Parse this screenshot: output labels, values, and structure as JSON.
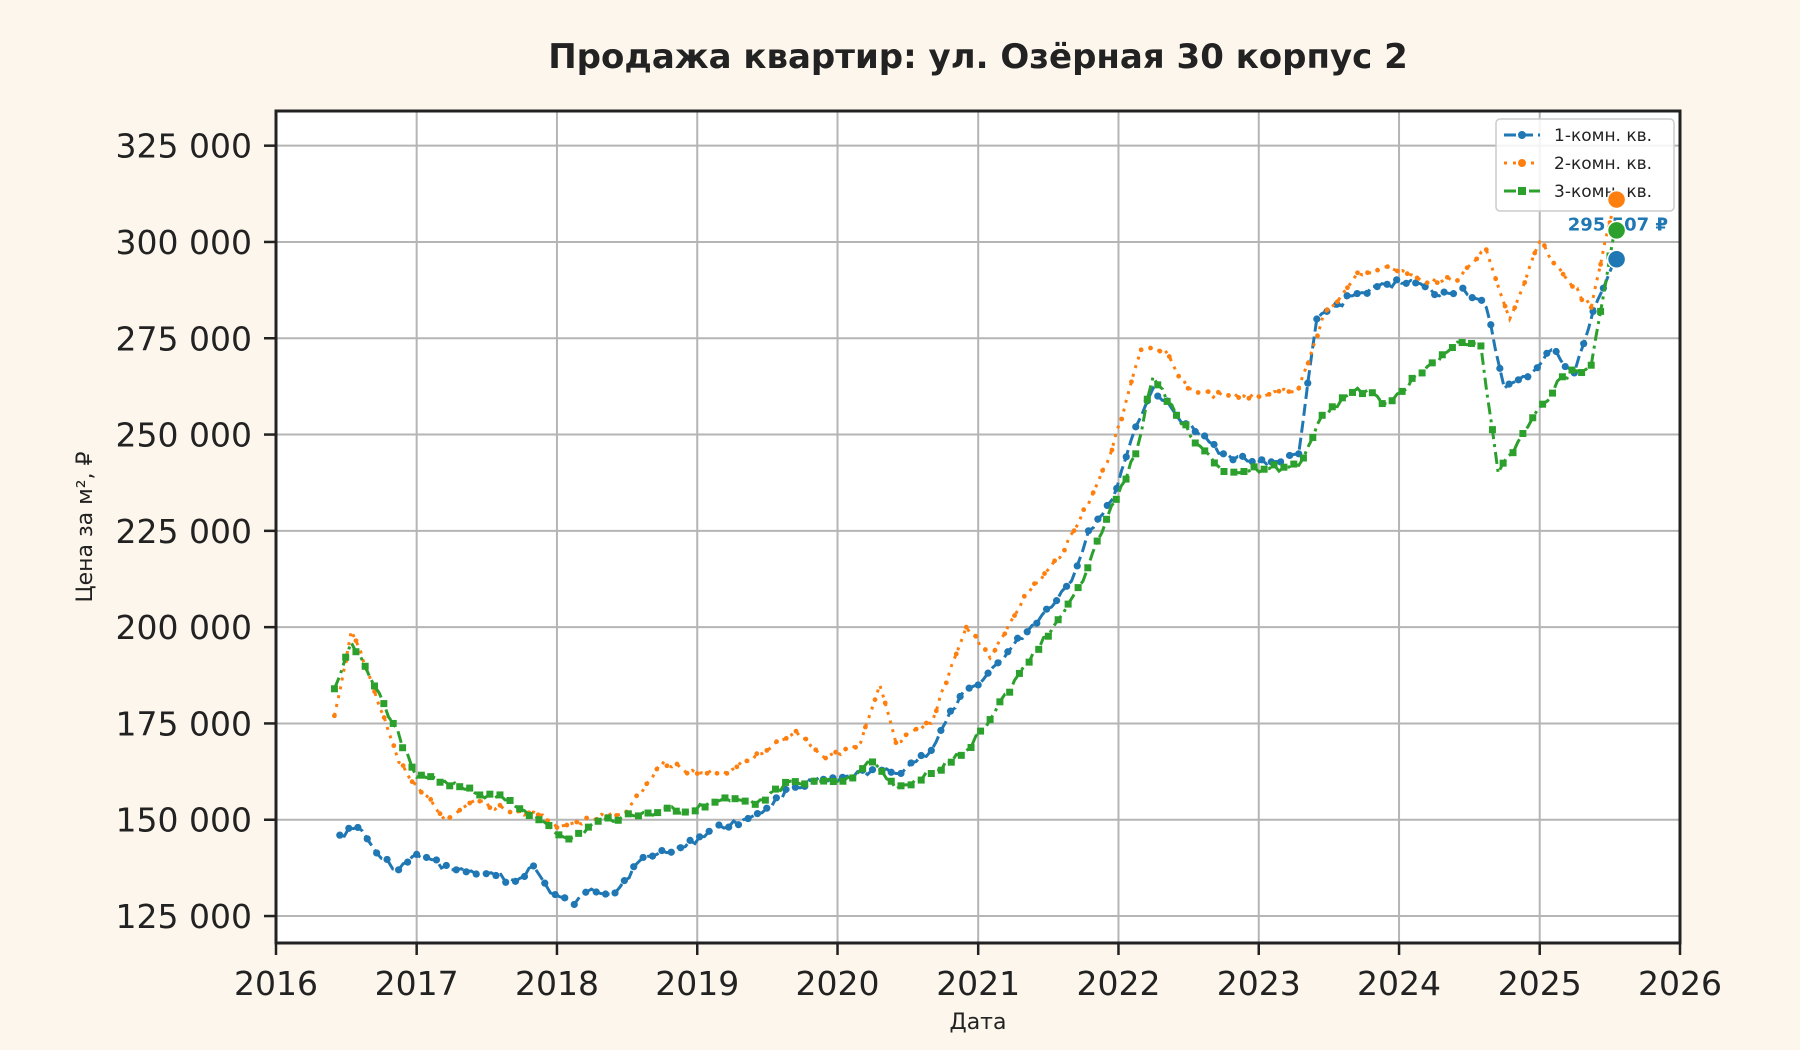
{
  "chart_data": {
    "type": "line",
    "title": "Продажа квартир: ул. Озёрная 30 корпус 2",
    "xlabel": "Дата",
    "ylabel": "Цена за м², ₽",
    "xlim": [
      "2016-01-01",
      "2026-01-01"
    ],
    "ylim": [
      118000,
      334000
    ],
    "x_ticks": [
      "2016",
      "2017",
      "2018",
      "2019",
      "2020",
      "2021",
      "2022",
      "2023",
      "2024",
      "2025",
      "2026"
    ],
    "y_ticks": [
      125000,
      150000,
      175000,
      200000,
      225000,
      250000,
      275000,
      300000,
      325000
    ],
    "y_tick_labels": [
      "125 000",
      "150 000",
      "175 000",
      "200 000",
      "225 000",
      "250 000",
      "275 000",
      "300 000",
      "325 000"
    ],
    "grid": true,
    "legend_position": "top-right",
    "series": [
      {
        "name": "1-комн. кв.",
        "color": "#1f77b4",
        "line_style": "dashed",
        "marker": "circle",
        "last_value": 295507,
        "last_label": "295 507 ₽",
        "points": [
          [
            "2016-06-15",
            146000
          ],
          [
            "2016-08-01",
            148000
          ],
          [
            "2016-10-01",
            140000
          ],
          [
            "2016-11-15",
            137000
          ],
          [
            "2017-01-01",
            141000
          ],
          [
            "2017-04-01",
            137000
          ],
          [
            "2017-07-01",
            136000
          ],
          [
            "2017-09-15",
            134000
          ],
          [
            "2017-11-01",
            138000
          ],
          [
            "2017-12-15",
            131000
          ],
          [
            "2018-02-15",
            128000
          ],
          [
            "2018-04-01",
            132000
          ],
          [
            "2018-06-01",
            131000
          ],
          [
            "2018-08-01",
            139000
          ],
          [
            "2018-10-01",
            142000
          ],
          [
            "2018-12-01",
            143000
          ],
          [
            "2019-02-01",
            147000
          ],
          [
            "2019-05-01",
            150000
          ],
          [
            "2019-07-01",
            153000
          ],
          [
            "2019-09-01",
            158000
          ],
          [
            "2019-11-01",
            160000
          ],
          [
            "2020-01-01",
            160000
          ],
          [
            "2020-04-01",
            163000
          ],
          [
            "2020-06-01",
            162000
          ],
          [
            "2020-09-01",
            168000
          ],
          [
            "2020-11-15",
            182000
          ],
          [
            "2021-01-01",
            185000
          ],
          [
            "2021-04-01",
            195000
          ],
          [
            "2021-06-15",
            203000
          ],
          [
            "2021-09-01",
            212000
          ],
          [
            "2021-10-15",
            225000
          ],
          [
            "2021-12-15",
            233000
          ],
          [
            "2022-02-15",
            252000
          ],
          [
            "2022-04-01",
            262000
          ],
          [
            "2022-06-01",
            255000
          ],
          [
            "2022-08-01",
            250000
          ],
          [
            "2022-10-01",
            245000
          ],
          [
            "2022-12-15",
            243000
          ],
          [
            "2023-02-15",
            243000
          ],
          [
            "2023-04-15",
            245000
          ],
          [
            "2023-06-01",
            280000
          ],
          [
            "2023-09-01",
            286000
          ],
          [
            "2023-12-01",
            289000
          ],
          [
            "2024-02-01",
            290000
          ],
          [
            "2024-04-15",
            286000
          ],
          [
            "2024-06-15",
            288000
          ],
          [
            "2024-08-15",
            283000
          ],
          [
            "2024-10-01",
            262000
          ],
          [
            "2024-12-01",
            265000
          ],
          [
            "2025-02-01",
            272000
          ],
          [
            "2025-04-01",
            266000
          ],
          [
            "2025-06-01",
            285000
          ],
          [
            "2025-07-15",
            295507
          ]
        ]
      },
      {
        "name": "2-комн. кв.",
        "color": "#ff7f0e",
        "line_style": "dotted",
        "marker": "circle",
        "last_value": 311000,
        "points": [
          [
            "2016-06-01",
            177000
          ],
          [
            "2016-07-15",
            199000
          ],
          [
            "2016-09-01",
            187000
          ],
          [
            "2016-11-15",
            165000
          ],
          [
            "2017-01-01",
            159000
          ],
          [
            "2017-03-15",
            150000
          ],
          [
            "2017-06-01",
            155000
          ],
          [
            "2017-09-01",
            152000
          ],
          [
            "2017-11-01",
            152000
          ],
          [
            "2018-01-01",
            148000
          ],
          [
            "2018-04-01",
            150000
          ],
          [
            "2018-07-01",
            152000
          ],
          [
            "2018-10-01",
            165000
          ],
          [
            "2019-01-01",
            162000
          ],
          [
            "2019-04-01",
            163000
          ],
          [
            "2019-07-01",
            168000
          ],
          [
            "2019-09-15",
            173000
          ],
          [
            "2019-12-01",
            166000
          ],
          [
            "2020-03-01",
            170000
          ],
          [
            "2020-04-20",
            185000
          ],
          [
            "2020-06-01",
            170000
          ],
          [
            "2020-09-01",
            175000
          ],
          [
            "2020-12-01",
            200000
          ],
          [
            "2021-02-01",
            192000
          ],
          [
            "2021-05-01",
            208000
          ],
          [
            "2021-08-01",
            218000
          ],
          [
            "2021-10-15",
            232000
          ],
          [
            "2021-12-15",
            246000
          ],
          [
            "2022-03-01",
            272000
          ],
          [
            "2022-05-01",
            272000
          ],
          [
            "2022-07-01",
            262000
          ],
          [
            "2022-10-01",
            260000
          ],
          [
            "2023-01-15",
            260000
          ],
          [
            "2023-04-15",
            262000
          ],
          [
            "2023-06-15",
            280000
          ],
          [
            "2023-09-15",
            292000
          ],
          [
            "2023-12-15",
            293000
          ],
          [
            "2024-03-01",
            290000
          ],
          [
            "2024-06-01",
            290000
          ],
          [
            "2024-08-15",
            298000
          ],
          [
            "2024-10-15",
            280000
          ],
          [
            "2025-01-01",
            300000
          ],
          [
            "2025-03-15",
            290000
          ],
          [
            "2025-05-15",
            283000
          ],
          [
            "2025-07-15",
            311000
          ]
        ]
      },
      {
        "name": "3-комн. кв.",
        "color": "#2ca02c",
        "line_style": "dashdot",
        "marker": "square",
        "last_value": 303000,
        "points": [
          [
            "2016-06-01",
            184000
          ],
          [
            "2016-07-15",
            196000
          ],
          [
            "2016-09-01",
            187000
          ],
          [
            "2016-11-01",
            175000
          ],
          [
            "2017-01-01",
            161000
          ],
          [
            "2017-03-15",
            160000
          ],
          [
            "2017-06-01",
            157000
          ],
          [
            "2017-09-01",
            155000
          ],
          [
            "2017-11-15",
            150000
          ],
          [
            "2018-02-01",
            145000
          ],
          [
            "2018-05-01",
            150000
          ],
          [
            "2018-08-01",
            151000
          ],
          [
            "2018-10-15",
            153000
          ],
          [
            "2018-12-01",
            152000
          ],
          [
            "2019-03-01",
            155000
          ],
          [
            "2019-06-01",
            154000
          ],
          [
            "2019-09-01",
            160000
          ],
          [
            "2019-11-01",
            160000
          ],
          [
            "2020-01-15",
            160000
          ],
          [
            "2020-04-01",
            165000
          ],
          [
            "2020-06-01",
            158000
          ],
          [
            "2020-09-01",
            162000
          ],
          [
            "2020-12-01",
            168000
          ],
          [
            "2021-02-01",
            176000
          ],
          [
            "2021-05-01",
            190000
          ],
          [
            "2021-07-15",
            200000
          ],
          [
            "2021-10-01",
            212000
          ],
          [
            "2021-12-01",
            228000
          ],
          [
            "2022-02-15",
            245000
          ],
          [
            "2022-04-01",
            265000
          ],
          [
            "2022-06-01",
            255000
          ],
          [
            "2022-08-01",
            247000
          ],
          [
            "2022-10-15",
            240000
          ],
          [
            "2023-01-15",
            241000
          ],
          [
            "2023-04-15",
            242000
          ],
          [
            "2023-06-15",
            255000
          ],
          [
            "2023-09-15",
            262000
          ],
          [
            "2023-12-01",
            258000
          ],
          [
            "2024-03-01",
            266000
          ],
          [
            "2024-06-01",
            274000
          ],
          [
            "2024-08-01",
            273000
          ],
          [
            "2024-09-15",
            240000
          ],
          [
            "2024-12-01",
            252000
          ],
          [
            "2025-03-01",
            265000
          ],
          [
            "2025-05-15",
            268000
          ],
          [
            "2025-07-15",
            303000
          ]
        ]
      }
    ]
  }
}
